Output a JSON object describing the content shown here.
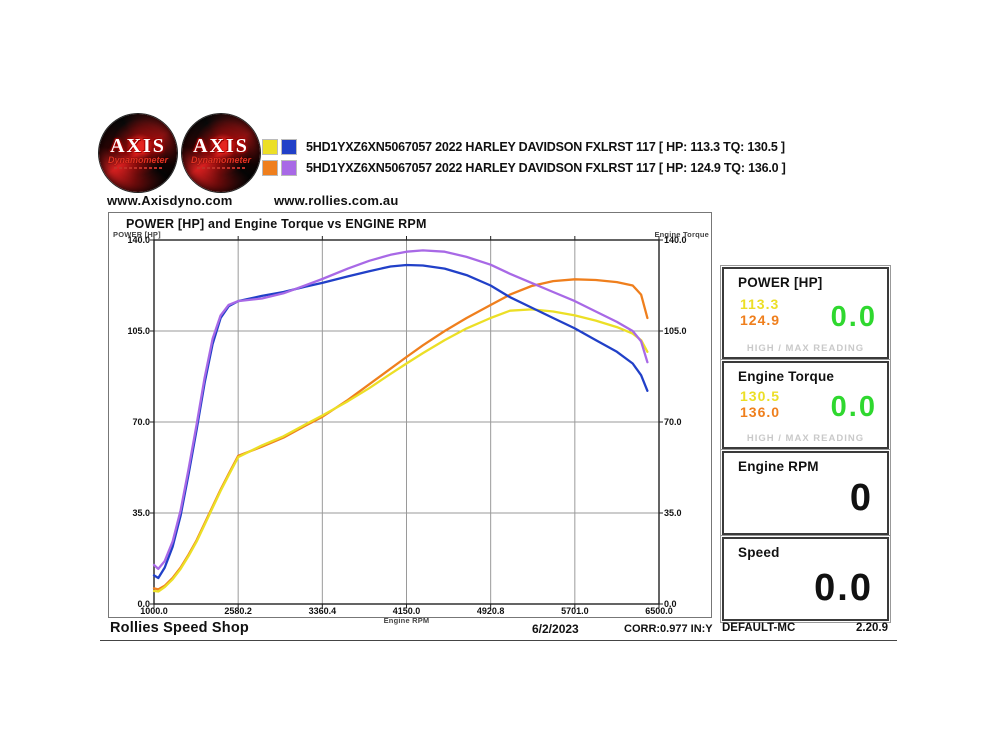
{
  "header": {
    "logo": {
      "brand": "AXIS",
      "sub": "Dynamometer"
    },
    "legend": [
      {
        "colors": [
          "#ecdf26",
          "#2140c8"
        ],
        "label": "5HD1YXZ6XN5067057 2022 HARLEY DAVIDSON FXLRST 117 [ HP: 113.3 TQ: 130.5 ]"
      },
      {
        "colors": [
          "#ef7f1d",
          "#a869e6"
        ],
        "label": "5HD1YXZ6XN5067057 2022 HARLEY DAVIDSON FXLRST 117 [ HP: 124.9 TQ: 136.0 ]"
      }
    ],
    "links": {
      "axis": "www.Axisdyno.com",
      "rollies": "www.rollies.com.au"
    }
  },
  "colors": {
    "run1": "#ecdf26",
    "run1_torque": "#2140c8",
    "run2": "#ef7f1d",
    "run2_torque": "#a869e6",
    "live_green": "#2fd82f",
    "grid": "#9a9a9a",
    "plot_border": "#222222"
  },
  "chart_data": {
    "type": "line",
    "title": "POWER [HP] and Engine Torque vs ENGINE RPM",
    "x_axis": {
      "label": "Engine RPM",
      "ticks": [
        1000.0,
        2580.2,
        3360.4,
        4150.0,
        4920.8,
        5701.0,
        6500.0
      ],
      "tick_labels": [
        "1000.0",
        "2580.2",
        "3360.4",
        "4150.0",
        "4920.8",
        "5701.0",
        "6500.0"
      ]
    },
    "y_left": {
      "label": "POWER [HP]",
      "min": 0,
      "max": 140,
      "ticks": [
        0,
        35,
        70,
        105,
        140
      ],
      "tick_labels": [
        "0.0",
        "35.0",
        "70.0",
        "105.0",
        "140.0"
      ]
    },
    "y_right": {
      "label": "Engine Torque",
      "min": 0,
      "max": 140,
      "ticks": [
        0,
        35,
        70,
        105,
        140
      ],
      "tick_labels": [
        "0.0",
        "35.0",
        "70.0",
        "105.0",
        "140.0"
      ]
    },
    "grid": true,
    "series": [
      {
        "name": "Run 2 Power [HP]",
        "color": "#ef7f1d",
        "points": [
          [
            1000,
            6
          ],
          [
            1080,
            5.6
          ],
          [
            1200,
            7
          ],
          [
            1350,
            10
          ],
          [
            1500,
            14
          ],
          [
            1650,
            19
          ],
          [
            1800,
            24.5
          ],
          [
            1950,
            31
          ],
          [
            2100,
            37.5
          ],
          [
            2250,
            44
          ],
          [
            2400,
            50
          ],
          [
            2580,
            57
          ],
          [
            2800,
            60.5
          ],
          [
            3000,
            64
          ],
          [
            3200,
            68.5
          ],
          [
            3360,
            72
          ],
          [
            3600,
            78.5
          ],
          [
            3800,
            84.5
          ],
          [
            4000,
            90.5
          ],
          [
            4150,
            95
          ],
          [
            4300,
            99.5
          ],
          [
            4500,
            105
          ],
          [
            4700,
            110
          ],
          [
            4920,
            115
          ],
          [
            5100,
            119
          ],
          [
            5300,
            122.3
          ],
          [
            5500,
            124.2
          ],
          [
            5701,
            124.9
          ],
          [
            5900,
            124.6
          ],
          [
            6100,
            123.8
          ],
          [
            6250,
            122.5
          ],
          [
            6330,
            119
          ],
          [
            6390,
            110
          ]
        ]
      },
      {
        "name": "Run 1 Power [HP]",
        "color": "#ecdf26",
        "points": [
          [
            1000,
            5
          ],
          [
            1080,
            4.8
          ],
          [
            1200,
            6.5
          ],
          [
            1350,
            9.5
          ],
          [
            1500,
            13.5
          ],
          [
            1650,
            18.5
          ],
          [
            1800,
            24
          ],
          [
            1950,
            30.5
          ],
          [
            2100,
            37
          ],
          [
            2250,
            43.5
          ],
          [
            2400,
            49.5
          ],
          [
            2580,
            56.5
          ],
          [
            2800,
            61
          ],
          [
            3000,
            64.5
          ],
          [
            3200,
            69
          ],
          [
            3360,
            72.5
          ],
          [
            3600,
            78
          ],
          [
            3800,
            83
          ],
          [
            4000,
            88.5
          ],
          [
            4150,
            92.5
          ],
          [
            4300,
            96.5
          ],
          [
            4500,
            101.5
          ],
          [
            4700,
            106
          ],
          [
            4920,
            110
          ],
          [
            5100,
            112.8
          ],
          [
            5300,
            113.3
          ],
          [
            5500,
            112.5
          ],
          [
            5701,
            111
          ],
          [
            5900,
            109
          ],
          [
            6100,
            106.5
          ],
          [
            6250,
            104
          ],
          [
            6330,
            101.5
          ],
          [
            6390,
            97
          ]
        ]
      },
      {
        "name": "Run 1 Engine Torque",
        "color": "#2140c8",
        "points": [
          [
            1000,
            11
          ],
          [
            1080,
            10
          ],
          [
            1200,
            14
          ],
          [
            1350,
            22
          ],
          [
            1500,
            34
          ],
          [
            1650,
            50
          ],
          [
            1800,
            67
          ],
          [
            1950,
            85
          ],
          [
            2100,
            100
          ],
          [
            2250,
            110
          ],
          [
            2400,
            114.5
          ],
          [
            2580,
            116.5
          ],
          [
            2800,
            118.5
          ],
          [
            3000,
            120
          ],
          [
            3200,
            122
          ],
          [
            3360,
            123.5
          ],
          [
            3600,
            126
          ],
          [
            3800,
            128
          ],
          [
            4000,
            129.8
          ],
          [
            4150,
            130.4
          ],
          [
            4300,
            130.2
          ],
          [
            4500,
            129
          ],
          [
            4700,
            126.5
          ],
          [
            4920,
            122.5
          ],
          [
            5100,
            118
          ],
          [
            5300,
            114
          ],
          [
            5500,
            110
          ],
          [
            5701,
            106
          ],
          [
            5900,
            101.5
          ],
          [
            6100,
            97
          ],
          [
            6250,
            92.5
          ],
          [
            6330,
            88
          ],
          [
            6390,
            82
          ]
        ]
      },
      {
        "name": "Run 2 Engine Torque",
        "color": "#a869e6",
        "points": [
          [
            1000,
            15
          ],
          [
            1080,
            13.5
          ],
          [
            1200,
            16.5
          ],
          [
            1350,
            24
          ],
          [
            1500,
            36
          ],
          [
            1650,
            52
          ],
          [
            1800,
            69
          ],
          [
            1950,
            87
          ],
          [
            2100,
            102
          ],
          [
            2250,
            111
          ],
          [
            2400,
            115
          ],
          [
            2580,
            116.5
          ],
          [
            2800,
            117.5
          ],
          [
            3000,
            119.5
          ],
          [
            3200,
            122.5
          ],
          [
            3360,
            125
          ],
          [
            3600,
            129
          ],
          [
            3800,
            132
          ],
          [
            4000,
            134.3
          ],
          [
            4150,
            135.5
          ],
          [
            4300,
            136
          ],
          [
            4500,
            135.5
          ],
          [
            4700,
            133.5
          ],
          [
            4920,
            130.5
          ],
          [
            5100,
            127
          ],
          [
            5300,
            123.5
          ],
          [
            5500,
            120
          ],
          [
            5701,
            116.5
          ],
          [
            5900,
            112.5
          ],
          [
            6100,
            108.5
          ],
          [
            6250,
            105
          ],
          [
            6330,
            101
          ],
          [
            6390,
            93
          ]
        ]
      }
    ]
  },
  "panel": {
    "power": {
      "title": "POWER [HP]",
      "run1": "113.3",
      "run2": "124.9",
      "live": "0.0",
      "caption": "HIGH / MAX READING"
    },
    "torque": {
      "title": "Engine Torque",
      "run1": "130.5",
      "run2": "136.0",
      "live": "0.0",
      "caption": "HIGH / MAX READING"
    },
    "rpm": {
      "title": "Engine RPM",
      "value": "0"
    },
    "speed": {
      "title": "Speed",
      "value": "0.0"
    }
  },
  "footer": {
    "shop": "Rollies Speed Shop",
    "date": "6/2/2023",
    "correction": "CORR:0.977 IN:Y",
    "config": "DEFAULT-MC",
    "version": "2.20.9"
  }
}
